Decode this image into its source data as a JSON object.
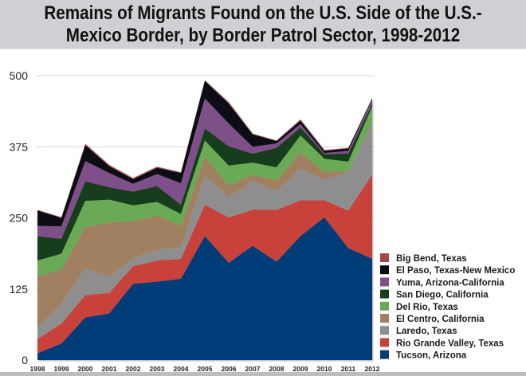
{
  "chart_data": {
    "type": "area",
    "stacked": true,
    "title_lines": [
      "Remains of Migrants Found on the U.S. Side of the U.S.-",
      "Mexico Border, by Border Patrol Sector, 1998-2012"
    ],
    "xlabel": "",
    "ylabel": "",
    "x": [
      "1998",
      "1999",
      "2000",
      "2001",
      "2002",
      "2003",
      "2004",
      "2005",
      "2006",
      "2007",
      "2008",
      "2009",
      "2010",
      "2011",
      "2012"
    ],
    "ylim": [
      0,
      500
    ],
    "yticks": [
      0,
      125,
      250,
      375,
      500
    ],
    "grid": true,
    "legend_position": "bottom-right",
    "series": [
      {
        "name": "Tucson, Arizona",
        "color": "#003d78",
        "values": [
          12,
          29,
          75,
          82,
          134,
          138,
          143,
          218,
          171,
          201,
          173,
          218,
          251,
          197,
          178
        ]
      },
      {
        "name": "Rio Grande Valley, Texas",
        "color": "#c8423b",
        "values": [
          25,
          35,
          39,
          36,
          31,
          37,
          35,
          55,
          80,
          63,
          91,
          63,
          30,
          66,
          148
        ]
      },
      {
        "name": "Laredo, Texas",
        "color": "#8e8e8e",
        "values": [
          21,
          36,
          47,
          29,
          15,
          19,
          21,
          52,
          36,
          51,
          33,
          56,
          36,
          68,
          92
        ]
      },
      {
        "name": "El Centro, California",
        "color": "#a08060",
        "values": [
          89,
          59,
          73,
          95,
          64,
          60,
          37,
          32,
          20,
          11,
          19,
          28,
          14,
          1,
          0
        ]
      },
      {
        "name": "Del Rio, Texas",
        "color": "#6aaa55",
        "values": [
          28,
          28,
          46,
          40,
          28,
          24,
          21,
          29,
          35,
          21,
          23,
          30,
          23,
          17,
          28
        ]
      },
      {
        "name": "San Diego, California",
        "color": "#163d1c",
        "values": [
          43,
          26,
          34,
          22,
          24,
          28,
          16,
          21,
          34,
          16,
          34,
          14,
          8,
          14,
          5
        ]
      },
      {
        "name": "Yuma, Arizona-California",
        "color": "#7f4f8a",
        "values": [
          18,
          22,
          36,
          25,
          14,
          21,
          38,
          53,
          40,
          12,
          8,
          6,
          2,
          5,
          7
        ]
      },
      {
        "name": "El Paso, Texas-New Mexico",
        "color": "#0a0a14",
        "values": [
          27,
          15,
          28,
          12,
          8,
          11,
          18,
          31,
          35,
          22,
          4,
          6,
          4,
          4,
          2
        ]
      },
      {
        "name": "Big Bend, Texas",
        "color": "#a04848",
        "values": [
          1,
          1,
          2,
          2,
          2,
          2,
          1,
          1,
          2,
          1,
          1,
          2,
          1,
          1,
          1
        ]
      }
    ]
  }
}
